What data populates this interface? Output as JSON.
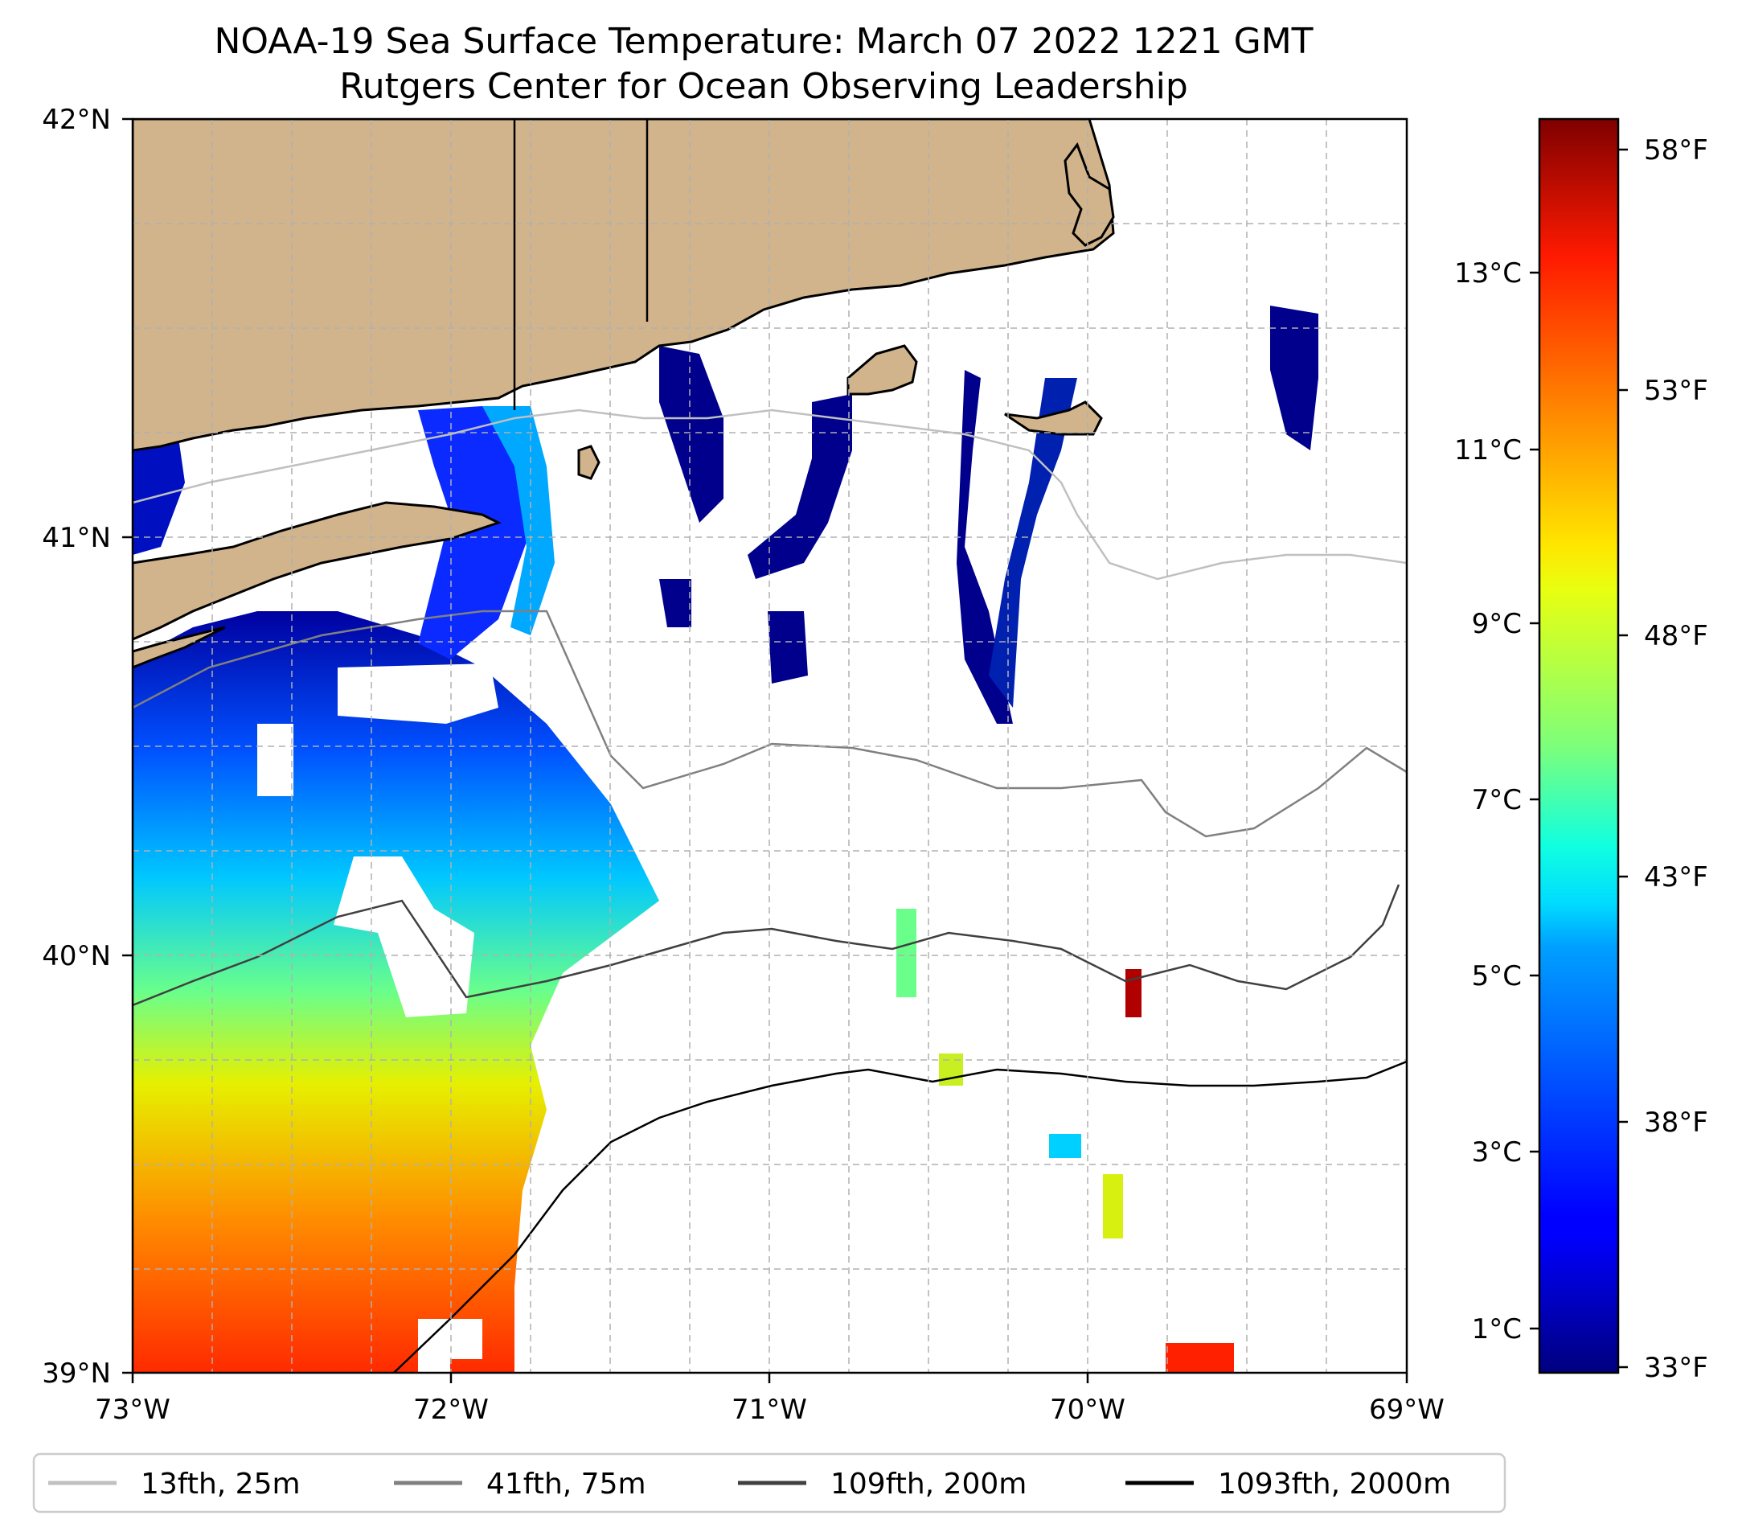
{
  "title": {
    "line1": "NOAA-19 Sea Surface Temperature: March 07 2022 1221 GMT",
    "line2": "Rutgers Center for Ocean Observing Leadership"
  },
  "map": {
    "lon_range": [
      -73,
      -69
    ],
    "lat_range": [
      39,
      42
    ],
    "x_ticks": [
      "73°W",
      "72°W",
      "71°W",
      "70°W",
      "69°W"
    ],
    "y_ticks": [
      "42°N",
      "41°N",
      "40°N",
      "39°N"
    ],
    "colors": {
      "land": "#d2b48c",
      "coast": "#000000",
      "grid": "#b0b0b0"
    }
  },
  "colorbar": {
    "colormap": "jet",
    "celsius_labels": [
      "13°C",
      "11°C",
      "9°C",
      "7°C",
      "5°C",
      "3°C",
      "1°C"
    ],
    "fahrenheit_labels": [
      "58°F",
      "53°F",
      "48°F",
      "43°F",
      "38°F",
      "33°F"
    ]
  },
  "legend": {
    "items": [
      {
        "label": "13fth, 25m",
        "color": "#c0c0c0"
      },
      {
        "label": "41fth, 75m",
        "color": "#808080"
      },
      {
        "label": "109fth, 200m",
        "color": "#404040"
      },
      {
        "label": "1093fth, 2000m",
        "color": "#000000"
      }
    ]
  },
  "chart_data": {
    "type": "heatmap",
    "variable": "Sea Surface Temperature",
    "units": [
      "°C",
      "°F"
    ],
    "lon_range": [
      -73,
      -69
    ],
    "lat_range": [
      39,
      42
    ],
    "celsius_ticks": [
      1,
      3,
      5,
      7,
      9,
      11,
      13
    ],
    "fahrenheit_ticks": [
      33,
      38,
      43,
      48,
      53,
      58
    ],
    "color_range_c": [
      0.5,
      14.5
    ],
    "isobaths": [
      "13fth, 25m",
      "41fth, 75m",
      "109fth, 200m",
      "1093fth, 2000m"
    ]
  }
}
